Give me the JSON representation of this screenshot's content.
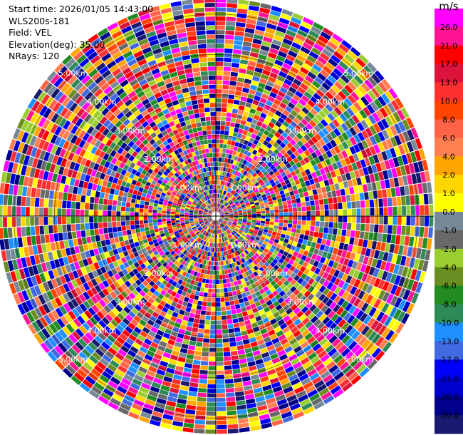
{
  "header": {
    "start_time": "Start time: 2026/01/05 14:43:00",
    "instrument": "WLS200s-181",
    "field": "Field: VEL",
    "elevation": "Elevation(deg): 35.00",
    "nrays": "NRays: 120"
  },
  "chart_data": {
    "type": "heatmap",
    "projection": "polar-ppi",
    "field": "VEL",
    "nrays": 120,
    "range_rings_km": [
      1.0,
      2.0,
      3.0,
      4.0,
      5.0
    ],
    "range_ring_labels": [
      "1.00km",
      "2.00km",
      "3.00km",
      "4.00km",
      "5.00km"
    ],
    "max_range_km": 5.4,
    "colorbar": {
      "unit": "m/s",
      "vmin": -30.0,
      "vmax": 30.0,
      "tick_labels": [
        "26.0",
        "21.0",
        "17.0",
        "13.0",
        "10.0",
        "8.0",
        "6.0",
        "4.0",
        "2.0",
        "1.0",
        "0.0",
        "-1.0",
        "-2.0",
        "-4.0",
        "-6.0",
        "-8.0",
        "-10.0",
        "-13.0",
        "-17.0",
        "-21.0",
        "-26.0",
        "-30.0"
      ],
      "colors": [
        "#ff00ff",
        "#ff1493",
        "#ff0000",
        "#dc143c",
        "#ff3030",
        "#ff4500",
        "#ff6347",
        "#ff7f50",
        "#ffa500",
        "#ffd700",
        "#ffff00",
        "#778899",
        "#696969",
        "#9acd32",
        "#6b8e23",
        "#228b22",
        "#2e8b57",
        "#1e90ff",
        "#4169e1",
        "#0000ff",
        "#0000cd",
        "#00008b",
        "#191970"
      ]
    }
  }
}
